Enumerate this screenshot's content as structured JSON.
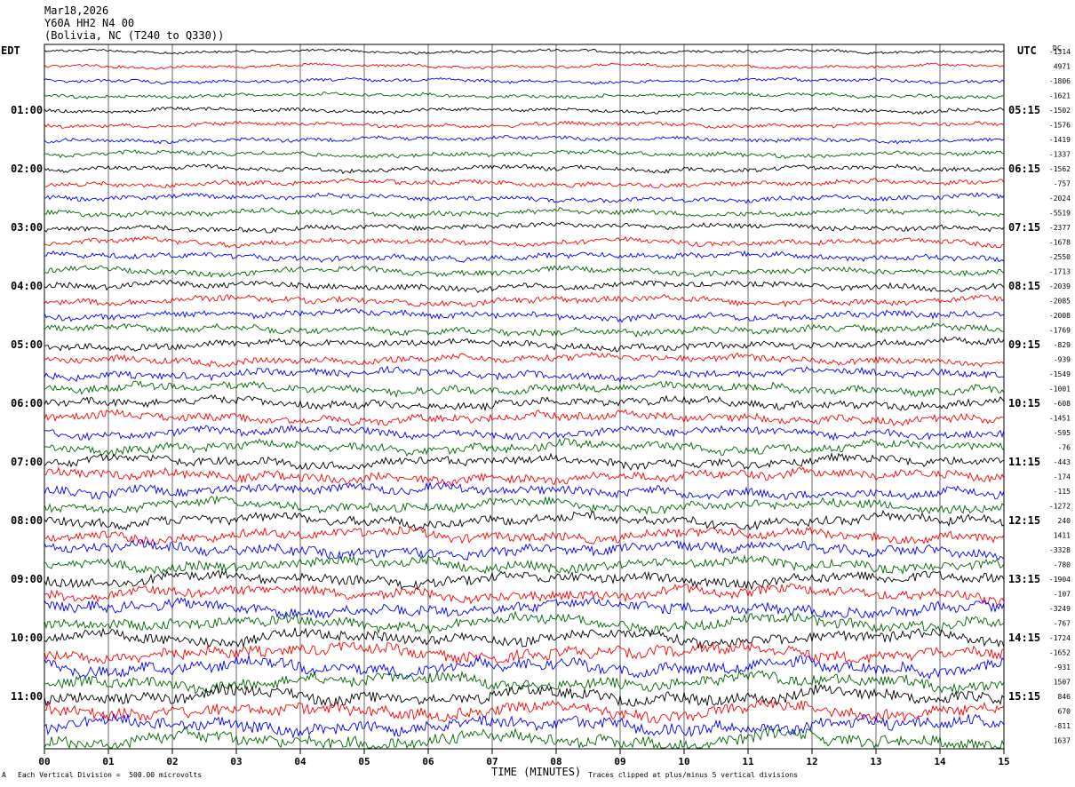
{
  "header": {
    "date": "Mar18,2026",
    "station": "Y60A HH2 N4 00",
    "location": "(Bolivia, NC (T240 to Q330))"
  },
  "labels": {
    "left_zone": "EDT",
    "right_zone": "UTC",
    "dc": "DC"
  },
  "footer": {
    "scale": "Each Vertical Division =  500.00 microvolts",
    "clip": "Traces clipped at plus/minus 5 vertical divisions",
    "corner": "A"
  },
  "chart_data": {
    "type": "line",
    "title": "Mar18,2026 Y60A HH2 N4 00 (Bolivia, NC (T240 to Q330))",
    "xlabel": "TIME (MINUTES)",
    "ylabel": "",
    "xlim": [
      0,
      15
    ],
    "x_ticks": [
      "00",
      "01",
      "02",
      "03",
      "04",
      "05",
      "06",
      "07",
      "08",
      "09",
      "10",
      "11",
      "12",
      "13",
      "14",
      "15"
    ],
    "trace_rows": 48,
    "trace_colors": [
      "#000000",
      "#ff0000",
      "#0000ff",
      "#006400"
    ],
    "left_time_labels": [
      {
        "row": 4,
        "text": "01:00"
      },
      {
        "row": 8,
        "text": "02:00"
      },
      {
        "row": 12,
        "text": "03:00"
      },
      {
        "row": 16,
        "text": "04:00"
      },
      {
        "row": 20,
        "text": "05:00"
      },
      {
        "row": 24,
        "text": "06:00"
      },
      {
        "row": 28,
        "text": "07:00"
      },
      {
        "row": 32,
        "text": "08:00"
      },
      {
        "row": 36,
        "text": "09:00"
      },
      {
        "row": 40,
        "text": "10:00"
      },
      {
        "row": 44,
        "text": "11:00"
      }
    ],
    "right_time_labels": [
      {
        "row": 4,
        "text": "05:15"
      },
      {
        "row": 8,
        "text": "06:15"
      },
      {
        "row": 12,
        "text": "07:15"
      },
      {
        "row": 16,
        "text": "08:15"
      },
      {
        "row": 20,
        "text": "09:15"
      },
      {
        "row": 24,
        "text": "10:15"
      },
      {
        "row": 28,
        "text": "11:15"
      },
      {
        "row": 32,
        "text": "12:15"
      },
      {
        "row": 36,
        "text": "13:15"
      },
      {
        "row": 40,
        "text": "14:15"
      },
      {
        "row": 44,
        "text": "15:15"
      }
    ],
    "dc_offsets": [
      "-1314",
      "4971",
      "-1806",
      "-1621",
      "-1502",
      "-1576",
      "-1419",
      "-1337",
      "-1562",
      "-757",
      "-2024",
      "-5519",
      "-2377",
      "-1678",
      "-2550",
      "-1713",
      "-2039",
      "-2085",
      "-2008",
      "-1769",
      "-829",
      "-939",
      "-1549",
      "-1001",
      "-608",
      "-1451",
      "-595",
      "-76",
      "-443",
      "-174",
      "-115",
      "-1272",
      "240",
      "1411",
      "-3328",
      "-780",
      "-1904",
      "-107",
      "-3249",
      "-767",
      "-1724",
      "-1652",
      "-931",
      "1507",
      "846",
      "670",
      "-811",
      "1637"
    ],
    "scale_microvolts_per_division": 500.0,
    "clip_divisions": 5
  }
}
